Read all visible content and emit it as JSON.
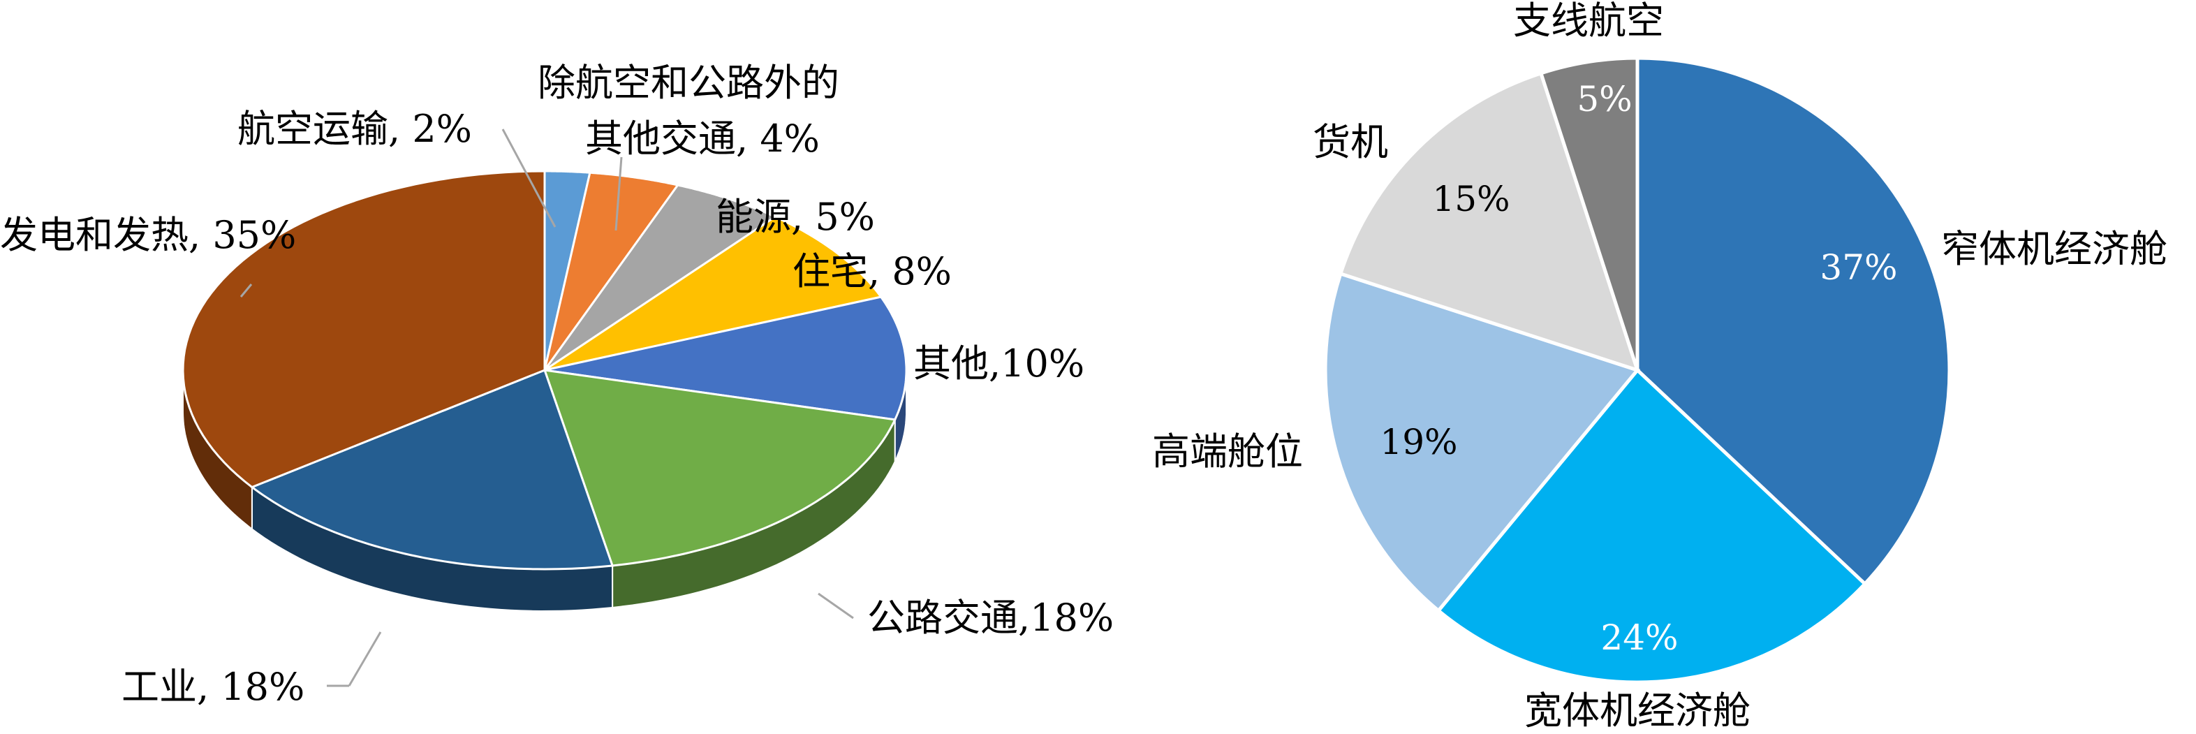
{
  "chart_data": [
    {
      "type": "pie",
      "style": "3d",
      "title": "",
      "slices": [
        {
          "label": "航空运输",
          "value": 2,
          "text": "航空运输, 2%",
          "color": "#5B9BD5"
        },
        {
          "label": "除航空和公路外的其他交通",
          "value": 4,
          "text_lines": [
            "除航空和公路外的",
            "其他交通, 4%"
          ],
          "color": "#ED7D31"
        },
        {
          "label": "能源",
          "value": 5,
          "text": "能源, 5%",
          "color": "#A5A5A5"
        },
        {
          "label": "住宅",
          "value": 8,
          "text": "住宅, 8%",
          "color": "#FFC000"
        },
        {
          "label": "其他",
          "value": 10,
          "text": "其他,10%",
          "color": "#4472C4"
        },
        {
          "label": "公路交通",
          "value": 18,
          "text": "公路交通,18%",
          "color": "#70AD47"
        },
        {
          "label": "工业",
          "value": 18,
          "text": "工业, 18%",
          "color": "#255E91"
        },
        {
          "label": "发电和发热",
          "value": 35,
          "text": "发电和发热, 35%",
          "color": "#9E480E"
        }
      ]
    },
    {
      "type": "pie",
      "title": "",
      "slices": [
        {
          "label": "窄体机经济舱",
          "value": 37,
          "pct": "37%",
          "color": "#2E75B6"
        },
        {
          "label": "宽体机经济舱",
          "value": 24,
          "pct": "24%",
          "color": "#00B0F0"
        },
        {
          "label": "高端舱位",
          "value": 19,
          "pct": "19%",
          "color": "#9DC3E6"
        },
        {
          "label": "货机",
          "value": 15,
          "pct": "15%",
          "color": "#D9D9D9"
        },
        {
          "label": "支线航空",
          "value": 5,
          "pct": "5%",
          "color": "#7F7F7F"
        }
      ]
    }
  ]
}
